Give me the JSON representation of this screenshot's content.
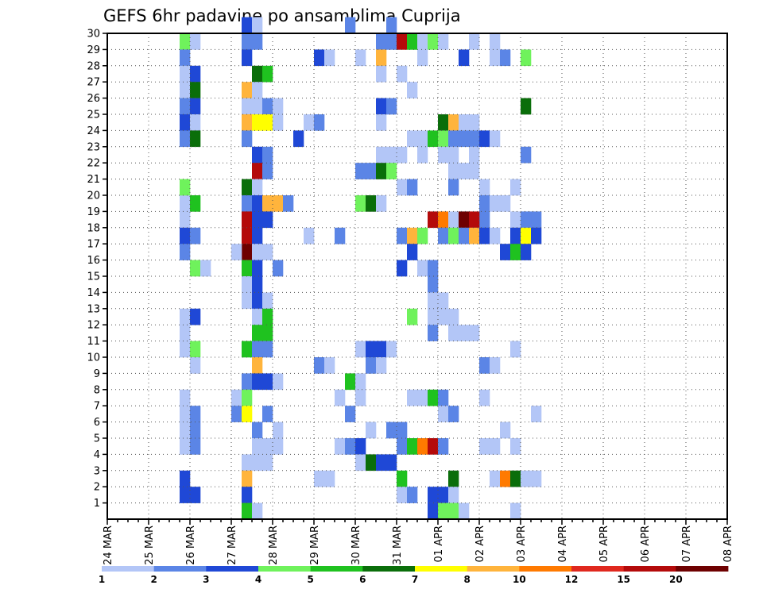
{
  "chart_data": {
    "type": "heatmap",
    "title": "GEFS 6hr padavine po ansamblima Cuprija",
    "xlabel": "",
    "ylabel": "",
    "x_ticks": [
      "24 MAR",
      "25 MAR",
      "26 MAR",
      "27 MAR",
      "28 MAR",
      "29 MAR",
      "30 MAR",
      "31 MAR",
      "01 APR",
      "02 APR",
      "03 APR",
      "04 APR",
      "05 APR",
      "06 APR",
      "07 APR",
      "08 APR"
    ],
    "x_range": [
      0,
      60
    ],
    "y_ticks": [
      1,
      2,
      3,
      4,
      5,
      6,
      7,
      8,
      9,
      10,
      11,
      12,
      13,
      14,
      15,
      16,
      17,
      18,
      19,
      20,
      21,
      22,
      23,
      24,
      25,
      26,
      27,
      28,
      29,
      30
    ],
    "y_range": [
      0,
      30
    ],
    "grid": true,
    "legend": {
      "position": "bottom",
      "levels": [
        "1",
        "2",
        "3",
        "4",
        "5",
        "6",
        "7",
        "8",
        "10",
        "12",
        "15",
        "20"
      ],
      "colors": [
        "#b3c6f7",
        "#5b85e6",
        "#1f48d6",
        "#6ff25c",
        "#1fc21f",
        "#0a6e0a",
        "#ffff00",
        "#ffb43c",
        "#ff7a00",
        "#e0281e",
        "#b40a0a",
        "#6e0000"
      ]
    },
    "cells": [
      [
        7,
        29,
        4
      ],
      [
        8,
        29,
        1
      ],
      [
        7,
        28,
        2
      ],
      [
        7,
        27,
        1
      ],
      [
        8,
        27,
        3
      ],
      [
        7,
        26,
        1
      ],
      [
        8,
        26,
        6
      ],
      [
        7,
        25,
        2
      ],
      [
        8,
        25,
        3
      ],
      [
        7,
        24,
        3
      ],
      [
        8,
        24,
        1
      ],
      [
        7,
        23,
        2
      ],
      [
        8,
        23,
        6
      ],
      [
        7,
        19,
        1
      ],
      [
        8,
        19,
        5
      ],
      [
        7,
        20,
        4
      ],
      [
        7,
        18,
        1
      ],
      [
        7,
        17,
        3
      ],
      [
        8,
        17,
        2
      ],
      [
        7,
        16,
        2
      ],
      [
        8,
        15,
        4
      ],
      [
        9,
        15,
        1
      ],
      [
        7,
        12,
        1
      ],
      [
        8,
        12,
        3
      ],
      [
        7,
        11,
        1
      ],
      [
        7,
        10,
        1
      ],
      [
        8,
        10,
        4
      ],
      [
        8,
        9,
        1
      ],
      [
        7,
        7,
        1
      ],
      [
        7,
        6,
        1
      ],
      [
        8,
        6,
        2
      ],
      [
        7,
        5,
        1
      ],
      [
        8,
        5,
        2
      ],
      [
        7,
        4,
        1
      ],
      [
        8,
        4,
        2
      ],
      [
        7,
        2,
        3
      ],
      [
        7,
        1,
        3
      ],
      [
        8,
        1,
        3
      ],
      [
        13,
        30,
        3
      ],
      [
        14,
        30,
        1
      ],
      [
        13,
        29,
        2
      ],
      [
        14,
        29,
        2
      ],
      [
        13,
        28,
        3
      ],
      [
        14,
        27,
        6
      ],
      [
        15,
        27,
        5
      ],
      [
        13,
        26,
        8
      ],
      [
        14,
        26,
        1
      ],
      [
        13,
        25,
        1
      ],
      [
        14,
        25,
        1
      ],
      [
        15,
        25,
        2
      ],
      [
        16,
        25,
        1
      ],
      [
        13,
        24,
        8
      ],
      [
        14,
        24,
        7
      ],
      [
        15,
        24,
        7
      ],
      [
        16,
        24,
        1
      ],
      [
        13,
        23,
        2
      ],
      [
        14,
        22,
        3
      ],
      [
        15,
        22,
        2
      ],
      [
        14,
        21,
        11
      ],
      [
        15,
        21,
        2
      ],
      [
        13,
        20,
        6
      ],
      [
        14,
        20,
        1
      ],
      [
        13,
        19,
        2
      ],
      [
        14,
        19,
        3
      ],
      [
        15,
        19,
        8
      ],
      [
        16,
        19,
        8
      ],
      [
        17,
        19,
        2
      ],
      [
        13,
        18,
        11
      ],
      [
        14,
        18,
        3
      ],
      [
        15,
        18,
        3
      ],
      [
        13,
        17,
        11
      ],
      [
        14,
        17,
        3
      ],
      [
        13,
        16,
        12
      ],
      [
        14,
        16,
        1
      ],
      [
        15,
        16,
        1
      ],
      [
        12,
        16,
        1
      ],
      [
        13,
        15,
        5
      ],
      [
        14,
        15,
        3
      ],
      [
        16,
        15,
        2
      ],
      [
        13,
        14,
        1
      ],
      [
        14,
        14,
        3
      ],
      [
        13,
        13,
        1
      ],
      [
        14,
        13,
        3
      ],
      [
        15,
        13,
        1
      ],
      [
        14,
        12,
        1
      ],
      [
        15,
        12,
        5
      ],
      [
        14,
        11,
        5
      ],
      [
        15,
        11,
        5
      ],
      [
        13,
        10,
        5
      ],
      [
        14,
        10,
        2
      ],
      [
        15,
        10,
        2
      ],
      [
        14,
        9,
        8
      ],
      [
        13,
        8,
        2
      ],
      [
        14,
        8,
        3
      ],
      [
        15,
        8,
        3
      ],
      [
        16,
        8,
        1
      ],
      [
        12,
        7,
        1
      ],
      [
        13,
        7,
        4
      ],
      [
        12,
        6,
        2
      ],
      [
        13,
        6,
        7
      ],
      [
        15,
        6,
        2
      ],
      [
        14,
        5,
        2
      ],
      [
        16,
        5,
        1
      ],
      [
        14,
        4,
        1
      ],
      [
        15,
        4,
        1
      ],
      [
        16,
        4,
        1
      ],
      [
        13,
        3,
        1
      ],
      [
        14,
        3,
        1
      ],
      [
        15,
        3,
        1
      ],
      [
        13,
        2,
        8
      ],
      [
        13,
        1,
        3
      ],
      [
        13,
        0,
        5
      ],
      [
        14,
        0,
        1
      ],
      [
        23,
        30,
        2
      ],
      [
        27,
        30,
        2
      ],
      [
        26,
        29,
        2
      ],
      [
        27,
        29,
        2
      ],
      [
        28,
        29,
        11
      ],
      [
        29,
        29,
        5
      ],
      [
        30,
        29,
        1
      ],
      [
        31,
        29,
        4
      ],
      [
        32,
        29,
        1
      ],
      [
        35,
        29,
        1
      ],
      [
        37,
        29,
        1
      ],
      [
        20,
        28,
        3
      ],
      [
        21,
        28,
        1
      ],
      [
        24,
        28,
        1
      ],
      [
        26,
        28,
        8
      ],
      [
        30,
        28,
        1
      ],
      [
        34,
        28,
        3
      ],
      [
        37,
        28,
        1
      ],
      [
        38,
        28,
        2
      ],
      [
        40,
        28,
        4
      ],
      [
        26,
        27,
        1
      ],
      [
        28,
        27,
        1
      ],
      [
        29,
        26,
        1
      ],
      [
        26,
        25,
        3
      ],
      [
        27,
        25,
        2
      ],
      [
        40,
        25,
        6
      ],
      [
        19,
        24,
        1
      ],
      [
        20,
        24,
        2
      ],
      [
        26,
        24,
        1
      ],
      [
        32,
        24,
        6
      ],
      [
        33,
        24,
        8
      ],
      [
        34,
        24,
        1
      ],
      [
        35,
        24,
        1
      ],
      [
        18,
        23,
        3
      ],
      [
        29,
        23,
        1
      ],
      [
        30,
        23,
        1
      ],
      [
        31,
        23,
        5
      ],
      [
        32,
        23,
        4
      ],
      [
        33,
        23,
        2
      ],
      [
        34,
        23,
        2
      ],
      [
        35,
        23,
        2
      ],
      [
        36,
        23,
        3
      ],
      [
        37,
        23,
        1
      ],
      [
        26,
        22,
        1
      ],
      [
        27,
        22,
        1
      ],
      [
        28,
        22,
        1
      ],
      [
        30,
        22,
        1
      ],
      [
        32,
        22,
        1
      ],
      [
        33,
        22,
        1
      ],
      [
        35,
        22,
        1
      ],
      [
        40,
        22,
        2
      ],
      [
        24,
        21,
        2
      ],
      [
        25,
        21,
        2
      ],
      [
        26,
        21,
        6
      ],
      [
        27,
        21,
        4
      ],
      [
        33,
        21,
        1
      ],
      [
        34,
        21,
        1
      ],
      [
        35,
        21,
        1
      ],
      [
        28,
        20,
        1
      ],
      [
        29,
        20,
        2
      ],
      [
        33,
        20,
        2
      ],
      [
        36,
        20,
        1
      ],
      [
        39,
        20,
        1
      ],
      [
        24,
        19,
        4
      ],
      [
        25,
        19,
        6
      ],
      [
        26,
        19,
        1
      ],
      [
        36,
        19,
        2
      ],
      [
        37,
        19,
        1
      ],
      [
        38,
        19,
        1
      ],
      [
        36,
        18,
        2
      ],
      [
        41,
        18,
        2
      ],
      [
        31,
        18,
        11
      ],
      [
        32,
        18,
        9
      ],
      [
        33,
        18,
        1
      ],
      [
        34,
        18,
        12
      ],
      [
        35,
        18,
        11
      ],
      [
        39,
        18,
        1
      ],
      [
        40,
        18,
        2
      ],
      [
        19,
        17,
        1
      ],
      [
        22,
        17,
        2
      ],
      [
        28,
        17,
        2
      ],
      [
        29,
        17,
        8
      ],
      [
        30,
        17,
        4
      ],
      [
        32,
        17,
        2
      ],
      [
        33,
        17,
        4
      ],
      [
        34,
        17,
        2
      ],
      [
        35,
        17,
        8
      ],
      [
        36,
        17,
        3
      ],
      [
        37,
        17,
        1
      ],
      [
        39,
        17,
        3
      ],
      [
        40,
        17,
        7
      ],
      [
        41,
        17,
        3
      ],
      [
        29,
        16,
        3
      ],
      [
        38,
        16,
        3
      ],
      [
        39,
        16,
        5
      ],
      [
        40,
        16,
        3
      ],
      [
        28,
        15,
        3
      ],
      [
        30,
        15,
        1
      ],
      [
        31,
        15,
        2
      ],
      [
        31,
        14,
        2
      ],
      [
        31,
        13,
        1
      ],
      [
        32,
        13,
        1
      ],
      [
        29,
        12,
        4
      ],
      [
        31,
        12,
        1
      ],
      [
        32,
        12,
        1
      ],
      [
        33,
        12,
        1
      ],
      [
        31,
        11,
        2
      ],
      [
        33,
        11,
        1
      ],
      [
        34,
        11,
        1
      ],
      [
        35,
        11,
        1
      ],
      [
        24,
        10,
        1
      ],
      [
        25,
        10,
        3
      ],
      [
        26,
        10,
        3
      ],
      [
        27,
        10,
        1
      ],
      [
        39,
        10,
        1
      ],
      [
        20,
        9,
        2
      ],
      [
        21,
        9,
        1
      ],
      [
        25,
        9,
        2
      ],
      [
        26,
        9,
        1
      ],
      [
        36,
        9,
        2
      ],
      [
        37,
        9,
        1
      ],
      [
        23,
        8,
        5
      ],
      [
        24,
        8,
        1
      ],
      [
        22,
        7,
        1
      ],
      [
        24,
        7,
        1
      ],
      [
        29,
        7,
        1
      ],
      [
        30,
        7,
        1
      ],
      [
        31,
        7,
        5
      ],
      [
        32,
        7,
        2
      ],
      [
        36,
        7,
        1
      ],
      [
        23,
        6,
        2
      ],
      [
        32,
        6,
        1
      ],
      [
        33,
        6,
        2
      ],
      [
        41,
        6,
        1
      ],
      [
        25,
        5,
        1
      ],
      [
        27,
        5,
        2
      ],
      [
        28,
        5,
        2
      ],
      [
        38,
        5,
        1
      ],
      [
        22,
        4,
        1
      ],
      [
        23,
        4,
        2
      ],
      [
        24,
        4,
        3
      ],
      [
        28,
        4,
        2
      ],
      [
        29,
        4,
        5
      ],
      [
        30,
        4,
        9
      ],
      [
        31,
        4,
        11
      ],
      [
        32,
        4,
        2
      ],
      [
        36,
        4,
        1
      ],
      [
        37,
        4,
        1
      ],
      [
        39,
        4,
        1
      ],
      [
        24,
        3,
        1
      ],
      [
        25,
        3,
        6
      ],
      [
        26,
        3,
        3
      ],
      [
        27,
        3,
        3
      ],
      [
        20,
        2,
        1
      ],
      [
        21,
        2,
        1
      ],
      [
        28,
        2,
        5
      ],
      [
        33,
        2,
        6
      ],
      [
        37,
        2,
        1
      ],
      [
        38,
        2,
        9
      ],
      [
        39,
        2,
        6
      ],
      [
        40,
        2,
        1
      ],
      [
        41,
        2,
        1
      ],
      [
        28,
        1,
        1
      ],
      [
        29,
        1,
        2
      ],
      [
        31,
        1,
        3
      ],
      [
        32,
        1,
        3
      ],
      [
        33,
        1,
        1
      ],
      [
        31,
        0,
        3
      ],
      [
        32,
        0,
        4
      ],
      [
        33,
        0,
        4
      ],
      [
        34,
        0,
        1
      ],
      [
        39,
        0,
        1
      ]
    ]
  }
}
